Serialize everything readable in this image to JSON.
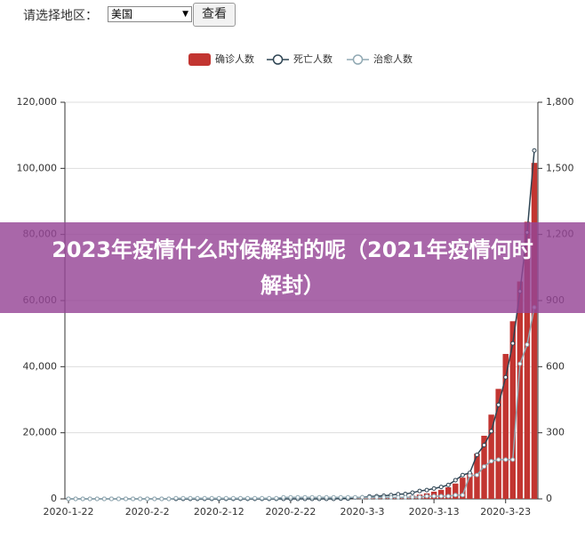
{
  "controls": {
    "label": "请选择地区：",
    "selected": "美国",
    "button": "查看"
  },
  "overlay": {
    "title": "2023年疫情什么时候解封的呢（2021年疫情何时解封）"
  },
  "chart_data": {
    "type": "bar-line",
    "categories": [
      "2020-1-22",
      null,
      null,
      null,
      null,
      null,
      null,
      null,
      null,
      null,
      null,
      "2020-2-2",
      null,
      null,
      null,
      null,
      null,
      null,
      null,
      null,
      null,
      "2020-2-12",
      null,
      null,
      null,
      null,
      null,
      null,
      null,
      null,
      null,
      "2020-2-22",
      null,
      null,
      null,
      null,
      null,
      null,
      null,
      null,
      null,
      "2020-3-3",
      null,
      null,
      null,
      null,
      null,
      null,
      null,
      null,
      null,
      "2020-3-13",
      null,
      null,
      null,
      null,
      null,
      null,
      null,
      null,
      null,
      "2020-3-23",
      null,
      null,
      null,
      null
    ],
    "series": [
      {
        "name": "确诊人数",
        "color": "#c23531",
        "kind": "bar",
        "values": [
          1,
          1,
          2,
          2,
          5,
          5,
          5,
          6,
          6,
          8,
          8,
          8,
          11,
          11,
          12,
          12,
          12,
          12,
          12,
          12,
          13,
          13,
          14,
          14,
          14,
          14,
          14,
          14,
          14,
          14,
          16,
          16,
          16,
          16,
          16,
          16,
          17,
          60,
          68,
          74,
          98,
          118,
          149,
          217,
          262,
          402,
          518,
          583,
          959,
          1281,
          1663,
          2179,
          2727,
          3499,
          4632,
          6421,
          7786,
          13680,
          19101,
          25493,
          33276,
          43847,
          53740,
          65778,
          83836,
          101657
        ]
      },
      {
        "name": "死亡人数",
        "color": "#2f4554",
        "kind": "line",
        "axis": "y2",
        "values": [
          0,
          0,
          0,
          0,
          0,
          0,
          0,
          0,
          0,
          0,
          0,
          0,
          0,
          0,
          0,
          0,
          0,
          0,
          0,
          0,
          0,
          0,
          0,
          0,
          0,
          0,
          0,
          0,
          0,
          0,
          0,
          0,
          0,
          0,
          0,
          0,
          0,
          0,
          1,
          1,
          6,
          7,
          11,
          12,
          14,
          17,
          21,
          22,
          28,
          36,
          40,
          47,
          54,
          63,
          85,
          108,
          118,
          200,
          244,
          307,
          427,
          552,
          706,
          942,
          1209,
          1581
        ]
      },
      {
        "name": "治愈人数",
        "color": "#91a9b3",
        "kind": "line",
        "axis": "y2",
        "values": [
          0,
          0,
          0,
          0,
          0,
          0,
          0,
          0,
          0,
          0,
          0,
          0,
          0,
          0,
          0,
          3,
          3,
          3,
          3,
          3,
          3,
          3,
          3,
          3,
          3,
          3,
          3,
          3,
          3,
          3,
          7,
          7,
          7,
          7,
          7,
          7,
          7,
          7,
          7,
          7,
          7,
          7,
          7,
          7,
          7,
          7,
          7,
          7,
          8,
          8,
          12,
          12,
          12,
          12,
          17,
          17,
          106,
          108,
          147,
          171,
          178,
          178,
          178,
          613,
          700,
          869
        ]
      }
    ],
    "ylim": [
      0,
      120000
    ],
    "yticks": [
      0,
      {
        "value": 20000,
        "label": "20,000"
      },
      {
        "value": 40000,
        "label": "40,000"
      },
      {
        "value": 60000,
        "label": "60,000"
      },
      {
        "value": 80000,
        "label": "80,000"
      },
      {
        "value": 100000,
        "label": "100,000"
      },
      {
        "value": 120000,
        "label": "120,000"
      }
    ],
    "y2lim": [
      0,
      1800
    ],
    "y2ticks": [
      0,
      300,
      600,
      900,
      {
        "value": 1200,
        "label": "1,200"
      },
      {
        "value": 1500,
        "label": "1,500"
      },
      {
        "value": 1800,
        "label": "1,800"
      }
    ],
    "grid": true
  }
}
